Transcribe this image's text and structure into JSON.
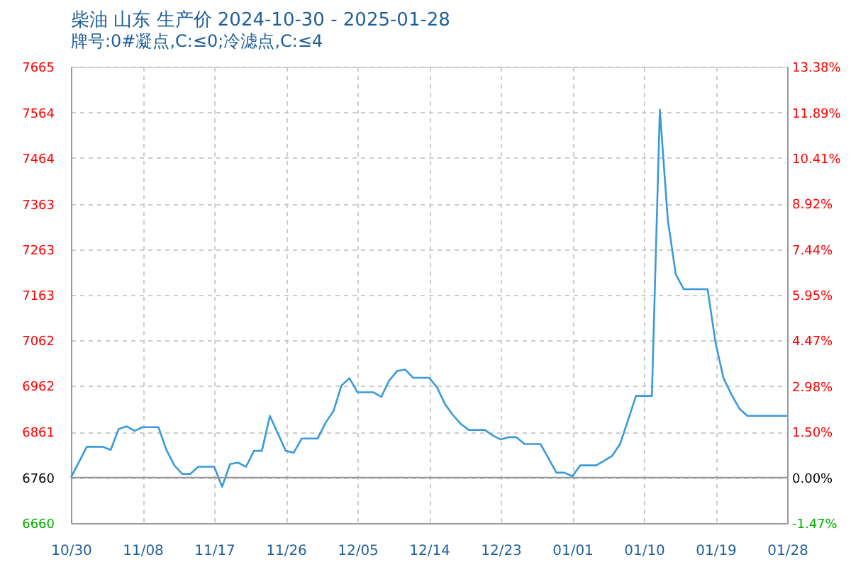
{
  "chart_data": {
    "type": "line",
    "title": "柴油 山东 生产价 2024-10-30 - 2025-01-28",
    "subtitle": "牌号:0#凝点,C:≤0;冷滤点,C:≤4",
    "x": [
      "2024-10-30",
      "2024-11-01",
      "2024-11-03",
      "2024-11-04",
      "2024-11-05",
      "2024-11-06",
      "2024-11-07",
      "2024-11-08",
      "2024-11-10",
      "2024-11-11",
      "2024-11-12",
      "2024-11-13",
      "2024-11-14",
      "2024-11-15",
      "2024-11-17",
      "2024-11-18",
      "2024-11-19",
      "2024-11-20",
      "2024-11-21",
      "2024-11-22",
      "2024-11-23",
      "2024-11-24",
      "2024-11-26",
      "2024-11-27",
      "2024-11-28",
      "2024-11-30",
      "2024-12-01",
      "2024-12-02",
      "2024-12-03",
      "2024-12-04",
      "2024-12-05",
      "2024-12-07",
      "2024-12-08",
      "2024-12-09",
      "2024-12-10",
      "2024-12-11",
      "2024-12-12",
      "2024-12-14",
      "2024-12-15",
      "2024-12-16",
      "2024-12-17",
      "2024-12-18",
      "2024-12-19",
      "2024-12-21",
      "2024-12-22",
      "2024-12-23",
      "2024-12-24",
      "2024-12-25",
      "2024-12-26",
      "2024-12-28",
      "2024-12-29",
      "2024-12-30",
      "2024-12-31",
      "2025-01-01",
      "2025-01-02",
      "2025-01-04",
      "2025-01-05",
      "2025-01-06",
      "2025-01-07",
      "2025-01-08",
      "2025-01-09",
      "2025-01-11",
      "2025-01-12",
      "2025-01-13",
      "2025-01-14",
      "2025-01-15",
      "2025-01-18",
      "2025-01-19",
      "2025-01-20",
      "2025-01-21",
      "2025-01-22",
      "2025-01-23",
      "2025-01-28"
    ],
    "series": [
      {
        "color": "#3a9ad9",
        "values": [
          6760,
          6828,
          6828,
          6821,
          6867,
          6873,
          6863,
          6871,
          6871,
          6821,
          6787,
          6768,
          6768,
          6784,
          6784,
          6740,
          6790,
          6793,
          6784,
          6819,
          6819,
          6896,
          6819,
          6815,
          6846,
          6846,
          6881,
          6907,
          6963,
          6979,
          6948,
          6948,
          6938,
          6974,
          6995,
          6998,
          6980,
          6980,
          6959,
          6922,
          6898,
          6878,
          6865,
          6865,
          6853,
          6844,
          6849,
          6849,
          6834,
          6834,
          6803,
          6771,
          6771,
          6763,
          6787,
          6787,
          6797,
          6808,
          6834,
          6886,
          6940,
          6940,
          7570,
          7328,
          7208,
          7175,
          7175,
          7057,
          6979,
          6943,
          6912,
          6896,
          6896
        ]
      }
    ],
    "xlim": [
      "2024-10-30",
      "2025-01-28"
    ],
    "xticks": [
      {
        "value": "2024-10-30",
        "label": "10/30"
      },
      {
        "value": "2024-11-08",
        "label": "11/08"
      },
      {
        "value": "2024-11-17",
        "label": "11/17"
      },
      {
        "value": "2024-11-26",
        "label": "11/26"
      },
      {
        "value": "2024-12-05",
        "label": "12/05"
      },
      {
        "value": "2024-12-14",
        "label": "12/14"
      },
      {
        "value": "2024-12-23",
        "label": "12/23"
      },
      {
        "value": "2025-01-01",
        "label": "01/01"
      },
      {
        "value": "2025-01-10",
        "label": "01/10"
      },
      {
        "value": "2025-01-19",
        "label": "01/19"
      },
      {
        "value": "2025-01-28",
        "label": "01/28"
      }
    ],
    "ylim": [
      6660,
      7665
    ],
    "yticks": [
      6660,
      6760,
      6861,
      6962,
      7062,
      7163,
      7263,
      7363,
      7464,
      7564,
      7665
    ],
    "y2lim": [
      -1.47,
      13.38
    ],
    "y2ticks": [
      {
        "value": -1.47,
        "label": "-1.47%"
      },
      {
        "value": 0,
        "label": "0.00%"
      },
      {
        "value": 1.5,
        "label": "1.50%"
      },
      {
        "value": 2.98,
        "label": "2.98%"
      },
      {
        "value": 4.47,
        "label": "4.47%"
      },
      {
        "value": 5.95,
        "label": "5.95%"
      },
      {
        "value": 7.44,
        "label": "7.44%"
      },
      {
        "value": 8.92,
        "label": "8.92%"
      },
      {
        "value": 10.41,
        "label": "10.41%"
      },
      {
        "value": 11.89,
        "label": "11.89%"
      },
      {
        "value": 13.38,
        "label": "13.38%"
      }
    ],
    "ref_lines": [
      {
        "axis": "y",
        "value": 6760,
        "color": "#999999"
      }
    ],
    "grid": true,
    "marker": "none",
    "line_style": "solid"
  }
}
